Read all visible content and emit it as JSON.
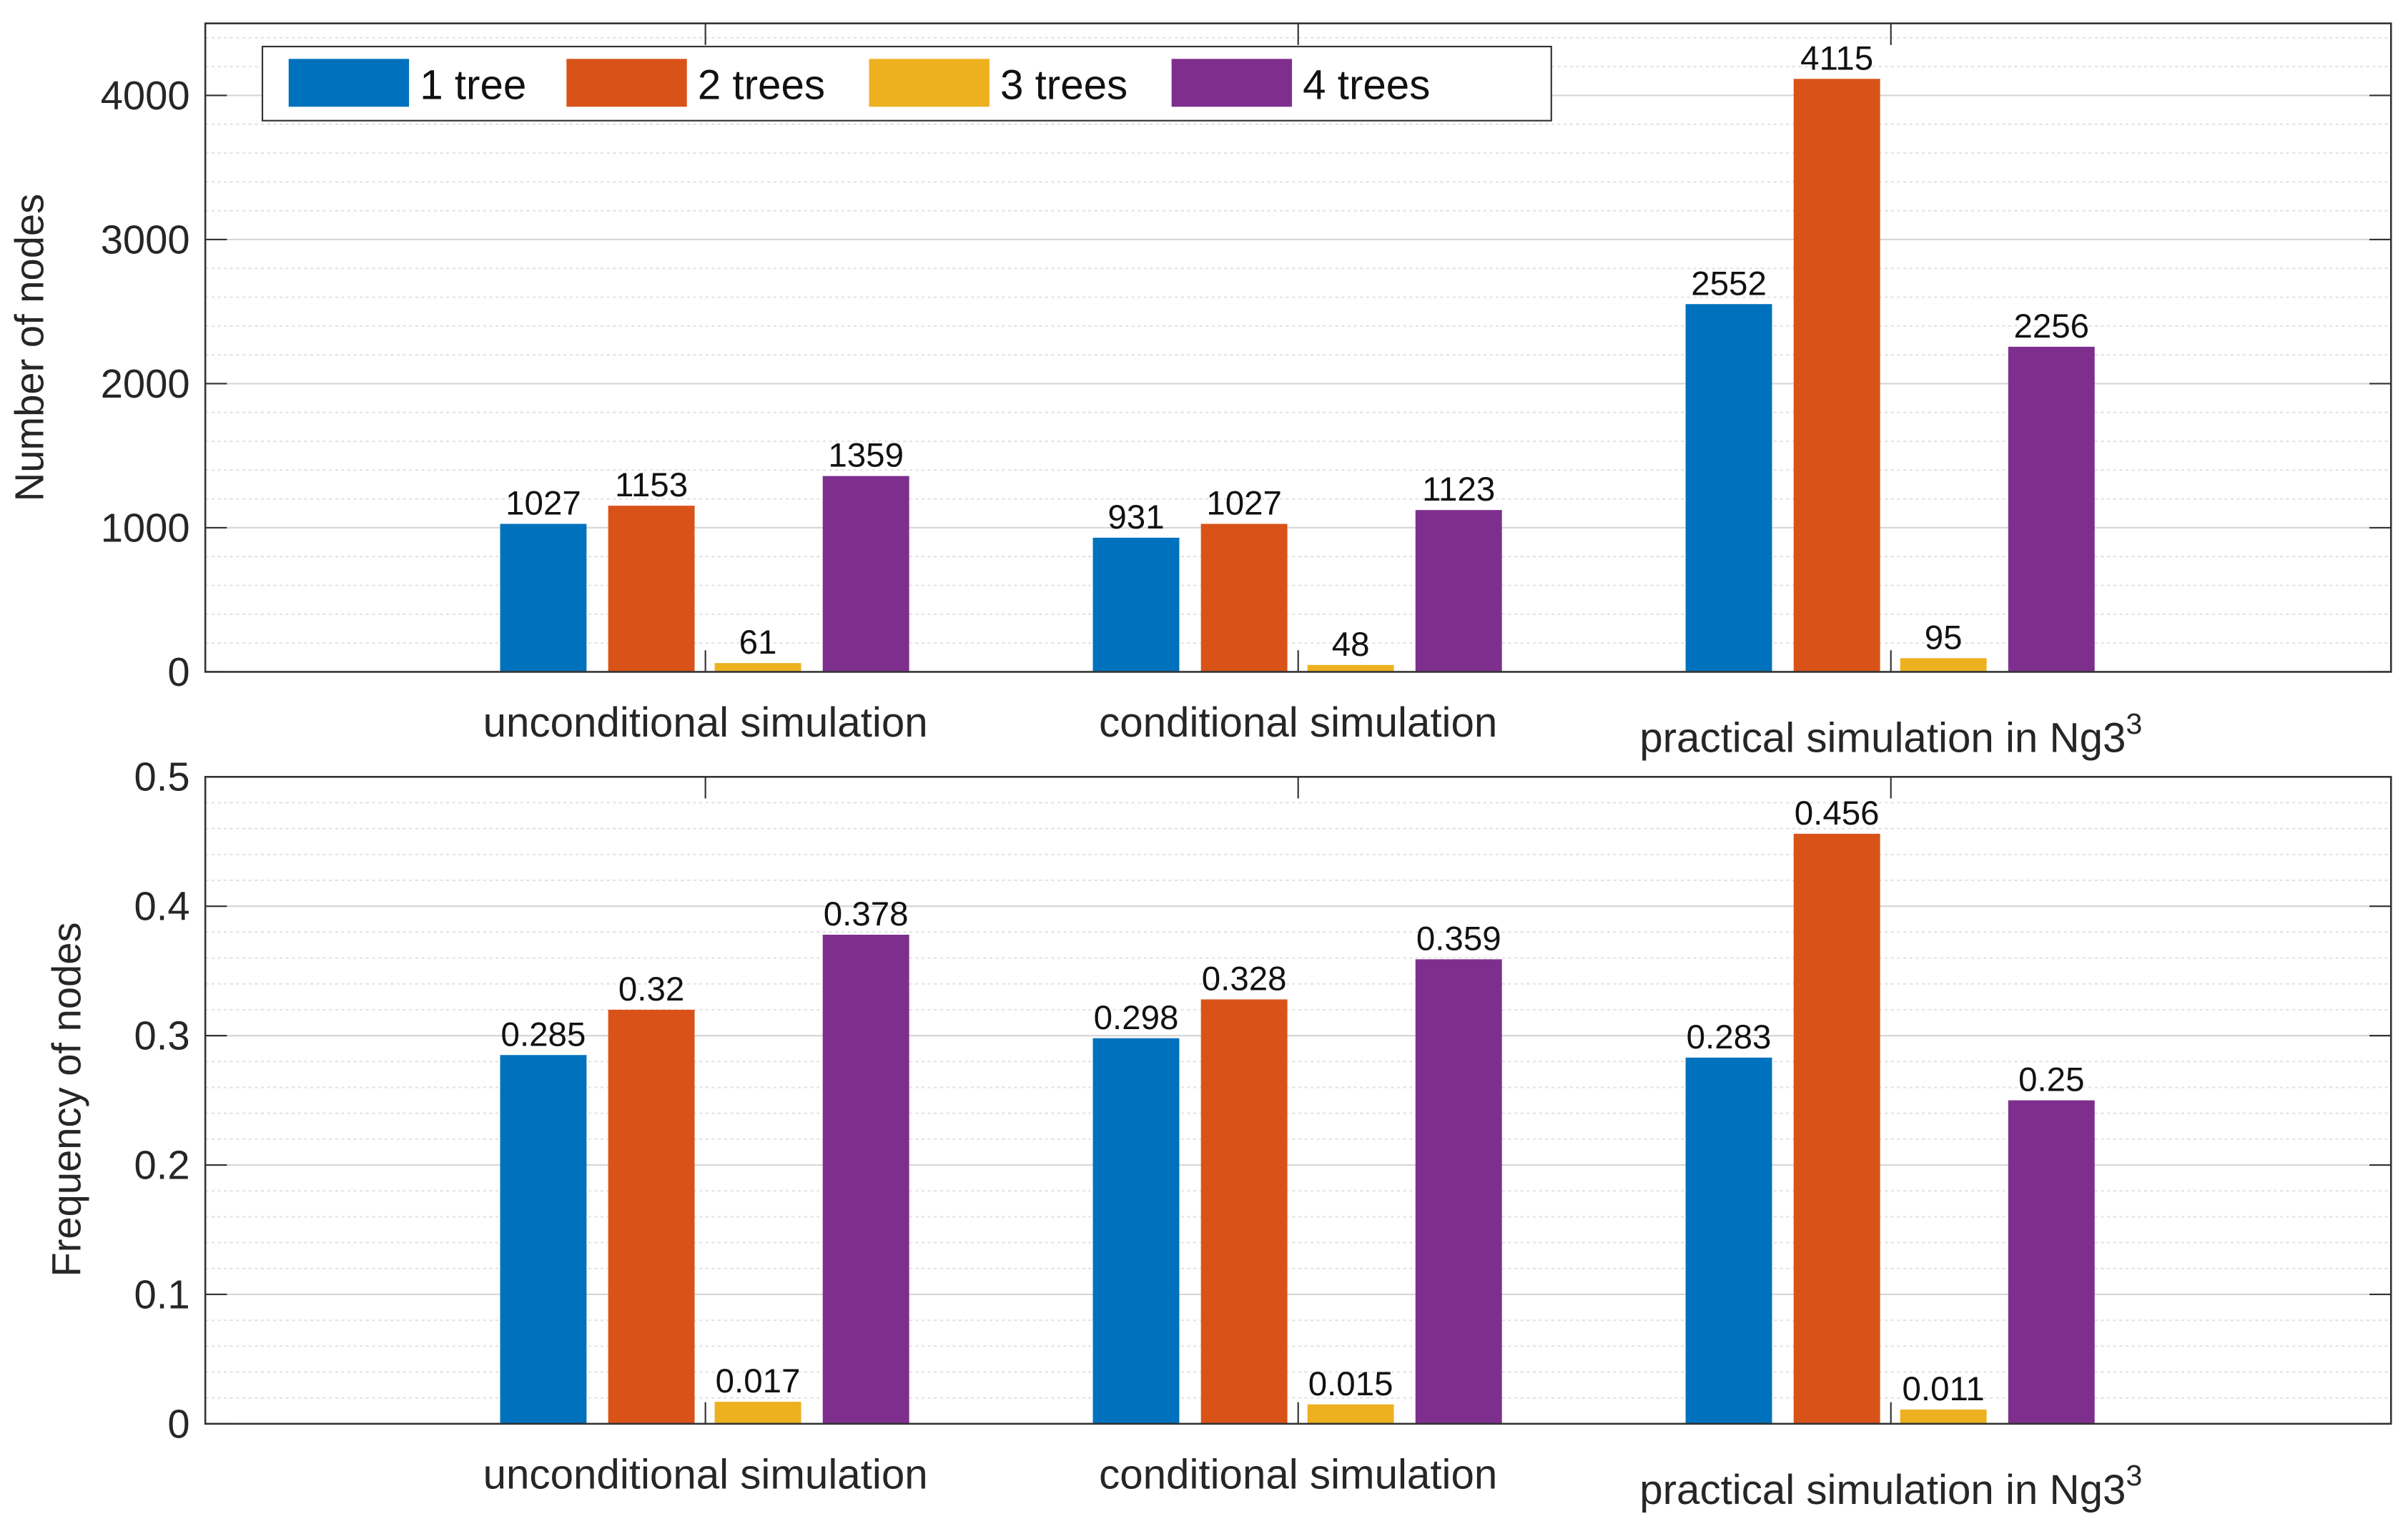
{
  "chart_data": [
    {
      "type": "bar",
      "ylabel": "Number of nodes",
      "xlabel": "",
      "ylim": [
        0,
        4500
      ],
      "yticks": [
        0,
        1000,
        2000,
        3000,
        4000
      ],
      "ytick_labels": [
        "0",
        "1000",
        "2000",
        "3000",
        "4000"
      ],
      "grid": true,
      "legend_position": "top-left",
      "categories": [
        "unconditional simulation",
        "conditional simulation",
        "practical simulation in Ng3"
      ],
      "category_superscript": [
        "",
        "",
        "3"
      ],
      "series": [
        {
          "name": "1 tree",
          "color": "#0072BD",
          "values": [
            1027,
            931,
            2552
          ],
          "labels": [
            "1027",
            "931",
            "2552"
          ]
        },
        {
          "name": "2 trees",
          "color": "#D95319",
          "values": [
            1153,
            1027,
            4115
          ],
          "labels": [
            "1153",
            "1027",
            "4115"
          ]
        },
        {
          "name": "3 trees",
          "color": "#EDB120",
          "values": [
            61,
            48,
            95
          ],
          "labels": [
            "61",
            "48",
            "95"
          ]
        },
        {
          "name": "4 trees",
          "color": "#7E2F8E",
          "values": [
            1359,
            1123,
            2256
          ],
          "labels": [
            "1359",
            "1123",
            "2256"
          ]
        }
      ]
    },
    {
      "type": "bar",
      "ylabel": "Frequency of nodes",
      "xlabel": "",
      "ylim": [
        0,
        0.5
      ],
      "yticks": [
        0,
        0.1,
        0.2,
        0.3,
        0.4,
        0.5
      ],
      "ytick_labels": [
        "0",
        "0.1",
        "0.2",
        "0.3",
        "0.4",
        "0.5"
      ],
      "grid": true,
      "categories": [
        "unconditional simulation",
        "conditional simulation",
        "practical simulation in Ng3"
      ],
      "category_superscript": [
        "",
        "",
        "3"
      ],
      "series": [
        {
          "name": "1 tree",
          "color": "#0072BD",
          "values": [
            0.285,
            0.298,
            0.283
          ],
          "labels": [
            "0.285",
            "0.298",
            "0.283"
          ]
        },
        {
          "name": "2 trees",
          "color": "#D95319",
          "values": [
            0.32,
            0.328,
            0.456
          ],
          "labels": [
            "0.32",
            "0.328",
            "0.456"
          ]
        },
        {
          "name": "3 trees",
          "color": "#EDB120",
          "values": [
            0.017,
            0.015,
            0.011
          ],
          "labels": [
            "0.017",
            "0.015",
            "0.011"
          ]
        },
        {
          "name": "4 trees",
          "color": "#7E2F8E",
          "values": [
            0.378,
            0.359,
            0.25
          ],
          "labels": [
            "0.378",
            "0.359",
            "0.25"
          ]
        }
      ]
    }
  ]
}
